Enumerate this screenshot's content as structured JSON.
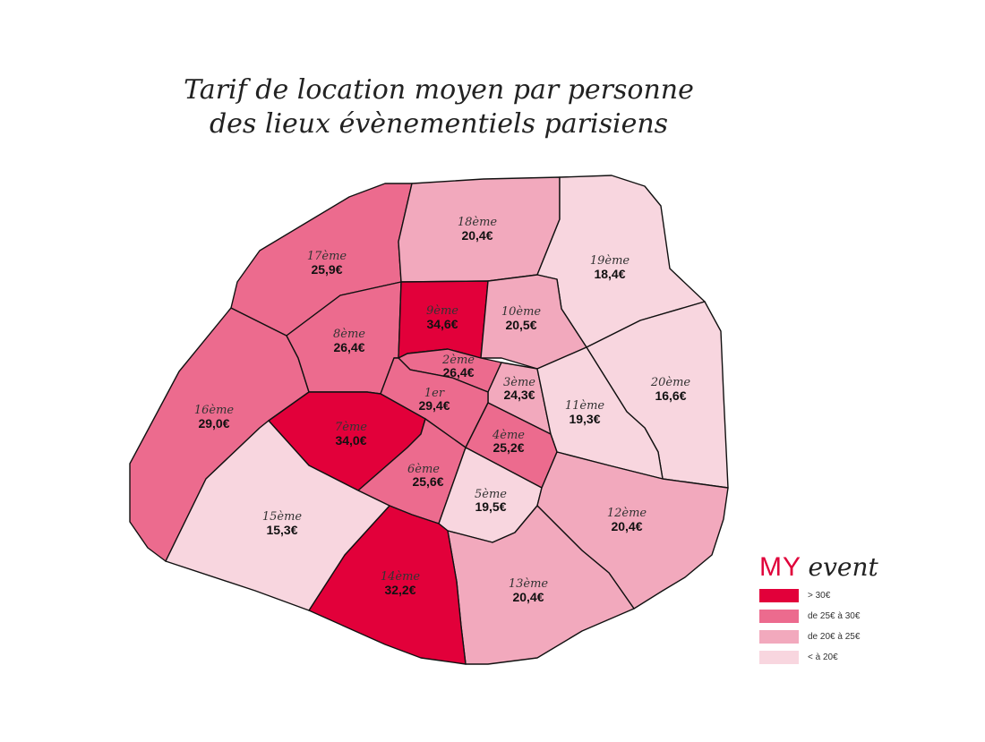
{
  "title": {
    "line1": "Tarif de location moyen par personne",
    "line2": "des lieux évènementiels parisiens"
  },
  "colors": {
    "gt30": "#e2003a",
    "25to30": "#ec6b8e",
    "20to25": "#f2a9bd",
    "lt20": "#f8d6df",
    "border": "#111111"
  },
  "districts": [
    {
      "id": "1",
      "name": "1er",
      "value": "29,4€",
      "class": "25to30"
    },
    {
      "id": "2",
      "name": "2ème",
      "value": "26,4€",
      "class": "25to30"
    },
    {
      "id": "3",
      "name": "3ème",
      "value": "24,3€",
      "class": "20to25"
    },
    {
      "id": "4",
      "name": "4ème",
      "value": "25,2€",
      "class": "25to30"
    },
    {
      "id": "5",
      "name": "5ème",
      "value": "19,5€",
      "class": "lt20"
    },
    {
      "id": "6",
      "name": "6ème",
      "value": "25,6€",
      "class": "25to30"
    },
    {
      "id": "7",
      "name": "7ème",
      "value": "34,0€",
      "class": "gt30"
    },
    {
      "id": "8",
      "name": "8ème",
      "value": "26,4€",
      "class": "25to30"
    },
    {
      "id": "9",
      "name": "9ème",
      "value": "34,6€",
      "class": "gt30"
    },
    {
      "id": "10",
      "name": "10ème",
      "value": "20,5€",
      "class": "20to25"
    },
    {
      "id": "11",
      "name": "11ème",
      "value": "19,3€",
      "class": "lt20"
    },
    {
      "id": "12",
      "name": "12ème",
      "value": "20,4€",
      "class": "20to25"
    },
    {
      "id": "13",
      "name": "13ème",
      "value": "20,4€",
      "class": "20to25"
    },
    {
      "id": "14",
      "name": "14ème",
      "value": "32,2€",
      "class": "gt30"
    },
    {
      "id": "15",
      "name": "15ème",
      "value": "15,3€",
      "class": "lt20"
    },
    {
      "id": "16",
      "name": "16ème",
      "value": "29,0€",
      "class": "25to30"
    },
    {
      "id": "17",
      "name": "17ème",
      "value": "25,9€",
      "class": "25to30"
    },
    {
      "id": "18",
      "name": "18ème",
      "value": "20,4€",
      "class": "20to25"
    },
    {
      "id": "19",
      "name": "19ème",
      "value": "18,4€",
      "class": "lt20"
    },
    {
      "id": "20",
      "name": "20ème",
      "value": "16,6€",
      "class": "lt20"
    }
  ],
  "brand": {
    "my": "MY",
    "event": "event"
  },
  "legend": [
    {
      "label": "> 30€",
      "class": "gt30"
    },
    {
      "label": "de 25€ à 30€",
      "class": "25to30"
    },
    {
      "label": "de 20€ à 25€",
      "class": "20to25"
    },
    {
      "label": "< à 20€",
      "class": "lt20"
    }
  ]
}
